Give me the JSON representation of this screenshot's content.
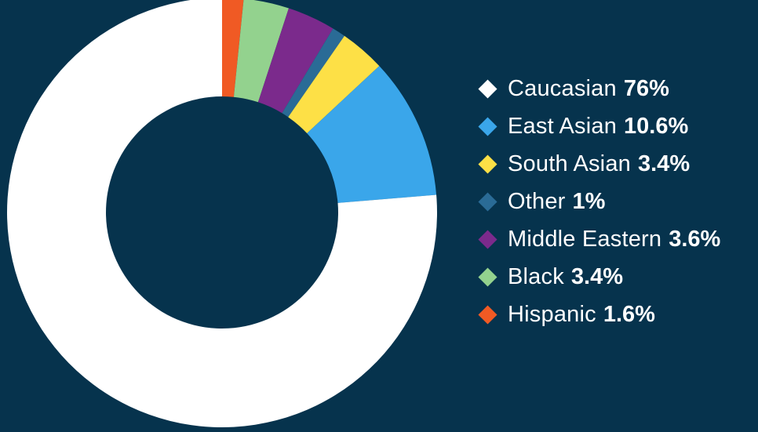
{
  "chart_data": {
    "type": "pie",
    "donut": true,
    "legend_position": "right",
    "background_color": "#06334d",
    "series": [
      {
        "name": "Caucasian",
        "value": 76,
        "label": "76%",
        "color": "#ffffff"
      },
      {
        "name": "East Asian",
        "value": 10.6,
        "label": "10.6%",
        "color": "#3aa6ea"
      },
      {
        "name": "South Asian",
        "value": 3.4,
        "label": "3.4%",
        "color": "#fde046"
      },
      {
        "name": "Other",
        "value": 1,
        "label": "1%",
        "color": "#2a6b96"
      },
      {
        "name": "Middle Eastern",
        "value": 3.6,
        "label": "3.6%",
        "color": "#7b2a8c"
      },
      {
        "name": "Black",
        "value": 3.4,
        "label": "3.4%",
        "color": "#93d28e"
      },
      {
        "name": "Hispanic",
        "value": 1.6,
        "label": "1.6%",
        "color": "#f05a24"
      }
    ]
  }
}
